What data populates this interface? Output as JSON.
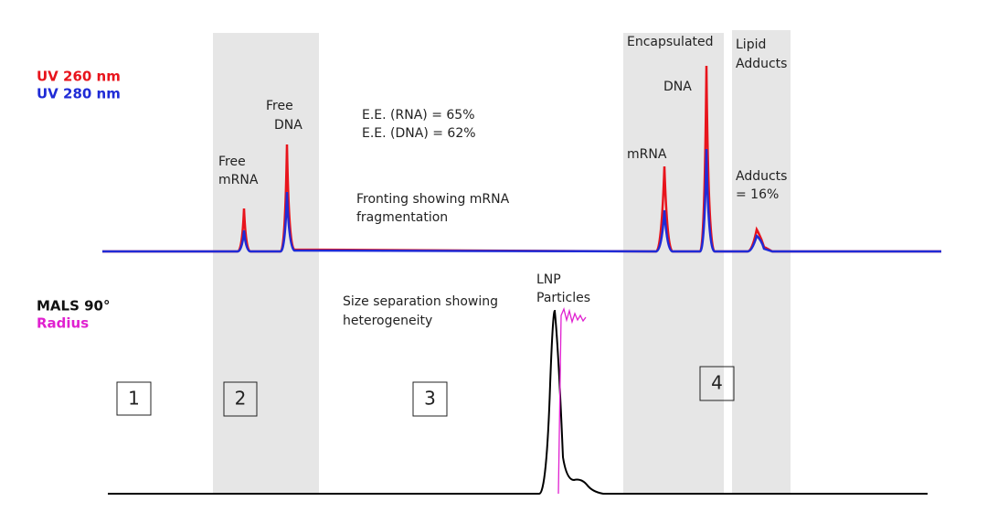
{
  "legend": {
    "uv": [
      "UV 260 nm",
      "UV 280 nm"
    ],
    "mals": [
      "MALS 90°",
      "Radius"
    ]
  },
  "annotations": {
    "free_mrna": [
      "Free",
      "mRNA"
    ],
    "free_dna": [
      "Free",
      "DNA"
    ],
    "ee": [
      "E.E. (RNA) = 65%",
      "E.E. (DNA) = 62%"
    ],
    "fronting": [
      "Fronting showing mRNA",
      "fragmentation"
    ],
    "encapsulated": [
      "Encapsulated",
      "DNA",
      "mRNA"
    ],
    "lipid": [
      "Lipid",
      "Adducts"
    ],
    "adducts": [
      "Adducts",
      "= 16%"
    ],
    "lnp": [
      "LNP",
      "Particles"
    ],
    "size": [
      "Size separation showing",
      "heterogeneity"
    ]
  },
  "regions": [
    "1",
    "2",
    "3",
    "4"
  ]
}
